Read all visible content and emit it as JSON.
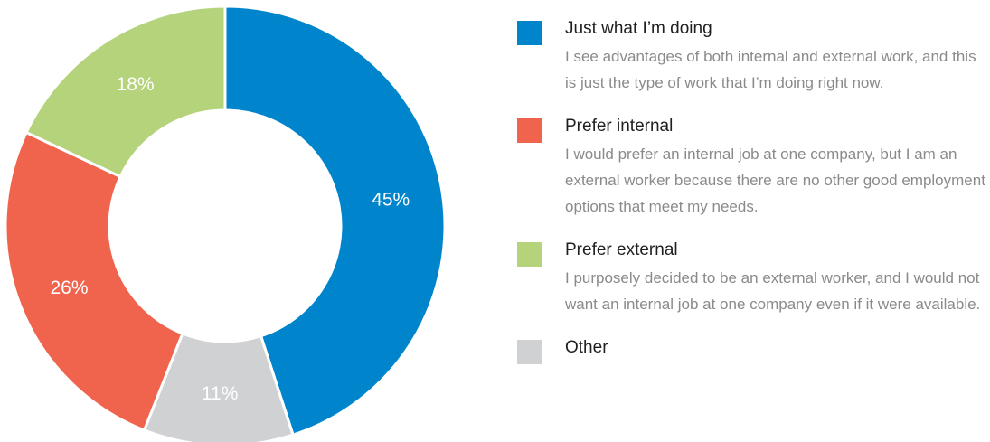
{
  "chart_data": {
    "type": "pie",
    "donut": true,
    "title": "",
    "categories": [
      "Just what I’m doing",
      "Prefer internal",
      "Prefer external",
      "Other"
    ],
    "values": [
      45,
      26,
      18,
      11
    ],
    "value_labels": [
      "45%",
      "26%",
      "18%",
      "11%"
    ],
    "slice_order_clockwise_from_top": [
      "Just what I’m doing",
      "Other",
      "Prefer internal",
      "Prefer external"
    ],
    "colors": {
      "Just what I’m doing": "#0085cc",
      "Other": "#d0d1d3",
      "Prefer internal": "#f0634d",
      "Prefer external": "#b4d37b"
    },
    "legend_position": "right"
  },
  "legend": {
    "items": [
      {
        "title": "Just what I’m doing",
        "description": "I see advantages of both internal and external work, and this is just the type of work that I’m doing right now.",
        "color": "#0085cc"
      },
      {
        "title": "Prefer internal",
        "description": "I would prefer an internal job at one company, but I am an external worker because there are no other good employment options that meet my needs.",
        "color": "#f0634d"
      },
      {
        "title": "Prefer external",
        "description": "I purposely decided to be an external worker, and I would not want an internal job at one company even if it were available.",
        "color": "#b4d37b"
      },
      {
        "title": "Other",
        "description": "",
        "color": "#d0d1d3"
      }
    ]
  }
}
